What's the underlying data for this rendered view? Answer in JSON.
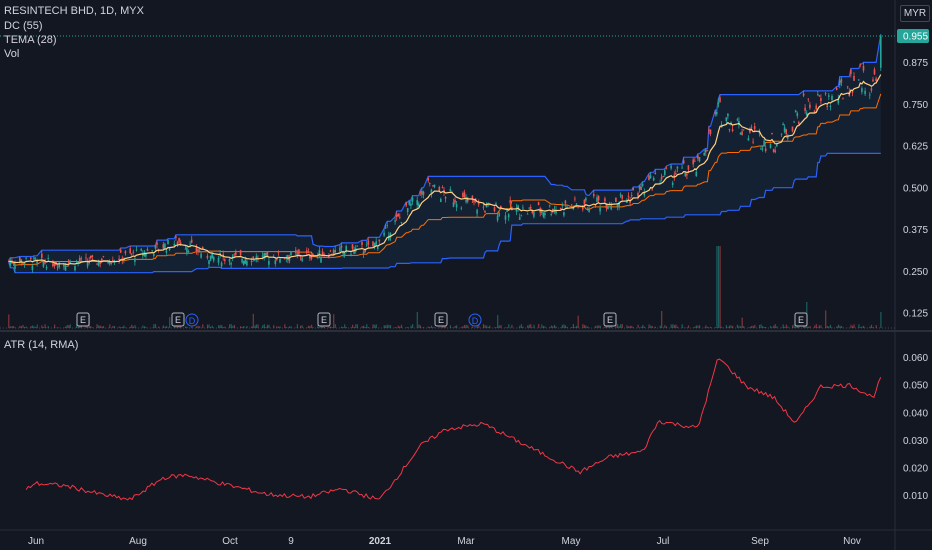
{
  "legend": {
    "symbol": "RESINTECH BHD, 1D, MYX",
    "dc": "DC (55)",
    "tema": "TEMA (28)",
    "vol": "Vol",
    "atr": "ATR (14, RMA)"
  },
  "currency": "MYR",
  "colors": {
    "background": "#131722",
    "up": "#26a69a",
    "down": "#ef5350",
    "donchian": "#2962ff",
    "donchian_basis": "#ff6d00",
    "tema": "#ffd180",
    "atr": "#f23645",
    "price_tag": "#26a69a"
  },
  "chart_data": [
    {
      "type": "candlestick",
      "title": "RESINTECH BHD, 1D, MYX",
      "y_ticks": [
        "0.125",
        "0.250",
        "0.375",
        "0.500",
        "0.625",
        "0.750",
        "0.875"
      ],
      "y_range": [
        0.11,
        0.97
      ],
      "last_price": "0.955",
      "x_ticks": [
        "Jun",
        "Aug",
        "Oct",
        "9",
        "2021",
        "Mar",
        "May",
        "Jul",
        "Sep",
        "Nov"
      ],
      "close_approx": [
        {
          "date": "2020-05-15",
          "close": 0.28
        },
        {
          "date": "2020-06-01",
          "close": 0.275
        },
        {
          "date": "2020-07-01",
          "close": 0.28
        },
        {
          "date": "2020-08-01",
          "close": 0.31
        },
        {
          "date": "2020-08-20",
          "close": 0.34
        },
        {
          "date": "2020-09-10",
          "close": 0.29
        },
        {
          "date": "2020-10-10",
          "close": 0.29
        },
        {
          "date": "2020-11-15",
          "close": 0.3
        },
        {
          "date": "2020-12-20",
          "close": 0.32
        },
        {
          "date": "2021-01-05",
          "close": 0.4
        },
        {
          "date": "2021-01-25",
          "close": 0.5
        },
        {
          "date": "2021-02-05",
          "close": 0.48
        },
        {
          "date": "2021-03-01",
          "close": 0.44
        },
        {
          "date": "2021-04-01",
          "close": 0.43
        },
        {
          "date": "2021-05-01",
          "close": 0.45
        },
        {
          "date": "2021-06-01",
          "close": 0.47
        },
        {
          "date": "2021-06-20",
          "close": 0.53
        },
        {
          "date": "2021-07-15",
          "close": 0.56
        },
        {
          "date": "2021-07-28",
          "close": 0.73
        },
        {
          "date": "2021-08-15",
          "close": 0.67
        },
        {
          "date": "2021-09-01",
          "close": 0.63
        },
        {
          "date": "2021-09-20",
          "close": 0.74
        },
        {
          "date": "2021-10-10",
          "close": 0.77
        },
        {
          "date": "2021-10-25",
          "close": 0.84
        },
        {
          "date": "2021-11-03",
          "close": 0.8
        },
        {
          "date": "2021-11-08",
          "close": 0.955
        }
      ],
      "events": [
        "E",
        "E",
        "D",
        "E",
        "E",
        "D",
        "E",
        "E"
      ]
    },
    {
      "type": "line",
      "title": "ATR (14, RMA)",
      "y_ticks": [
        "0.010",
        "0.020",
        "0.030",
        "0.040",
        "0.050",
        "0.060"
      ],
      "y_range": [
        0.003,
        0.062
      ],
      "series": [
        {
          "name": "ATR (14, RMA)",
          "points": [
            {
              "date": "2020-05-15",
              "value": 0.012
            },
            {
              "date": "2020-05-20",
              "value": 0.0145
            },
            {
              "date": "2020-06-10",
              "value": 0.0135
            },
            {
              "date": "2020-07-01",
              "value": 0.0105
            },
            {
              "date": "2020-07-20",
              "value": 0.0085
            },
            {
              "date": "2020-08-10",
              "value": 0.0165
            },
            {
              "date": "2020-08-25",
              "value": 0.0175
            },
            {
              "date": "2020-09-15",
              "value": 0.0145
            },
            {
              "date": "2020-10-15",
              "value": 0.0105
            },
            {
              "date": "2020-11-10",
              "value": 0.0095
            },
            {
              "date": "2020-12-01",
              "value": 0.0125
            },
            {
              "date": "2020-12-25",
              "value": 0.0085
            },
            {
              "date": "2021-01-05",
              "value": 0.0165
            },
            {
              "date": "2021-01-20",
              "value": 0.028
            },
            {
              "date": "2021-02-05",
              "value": 0.034
            },
            {
              "date": "2021-03-01",
              "value": 0.036
            },
            {
              "date": "2021-04-01",
              "value": 0.027
            },
            {
              "date": "2021-05-01",
              "value": 0.0185
            },
            {
              "date": "2021-05-20",
              "value": 0.024
            },
            {
              "date": "2021-06-10",
              "value": 0.026
            },
            {
              "date": "2021-06-20",
              "value": 0.037
            },
            {
              "date": "2021-07-15",
              "value": 0.0345
            },
            {
              "date": "2021-07-28",
              "value": 0.06
            },
            {
              "date": "2021-08-15",
              "value": 0.0495
            },
            {
              "date": "2021-09-01",
              "value": 0.0455
            },
            {
              "date": "2021-09-15",
              "value": 0.036
            },
            {
              "date": "2021-10-01",
              "value": 0.0495
            },
            {
              "date": "2021-10-20",
              "value": 0.05
            },
            {
              "date": "2021-11-03",
              "value": 0.0455
            },
            {
              "date": "2021-11-08",
              "value": 0.0525
            }
          ]
        }
      ]
    }
  ]
}
